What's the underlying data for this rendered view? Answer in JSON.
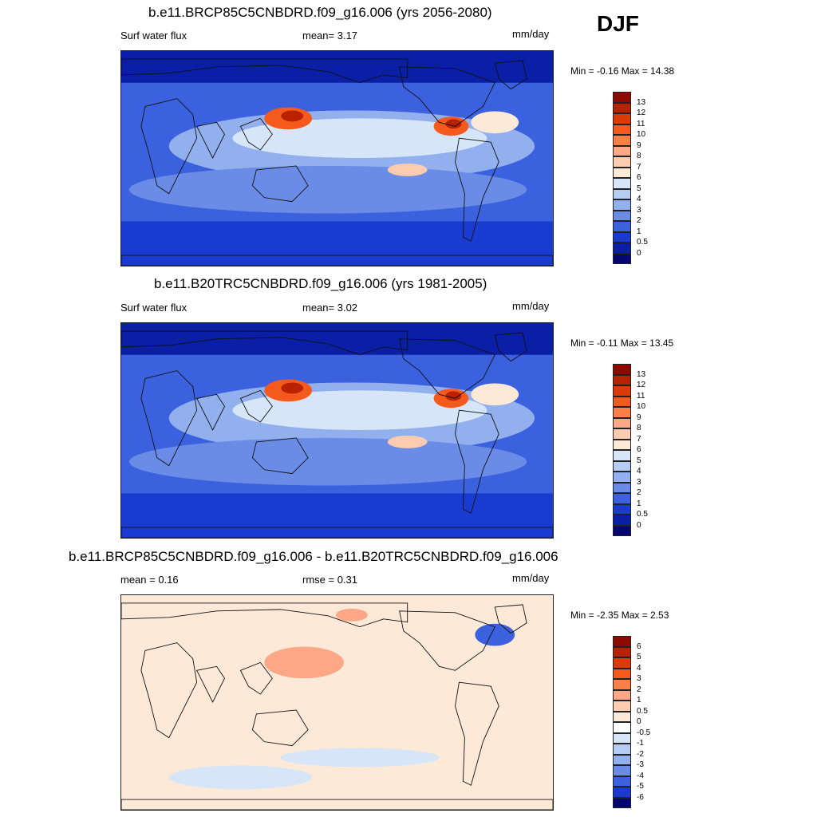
{
  "season": "DJF",
  "panels": [
    {
      "title": "b.e11.BRCP85C5CNBDRD.f09_g16.006 (yrs 2056-2080)",
      "left_label": "Surf water flux",
      "center_label": "mean=   3.17",
      "units": "mm/day",
      "minmax": "Min =  -0.16 Max =  14.38",
      "legend_labels": [
        "13",
        "12",
        "11",
        "10",
        "9",
        "8",
        "7",
        "6",
        "5",
        "4",
        "3",
        "2",
        "1",
        "0.5",
        "0"
      ],
      "legend_colors": [
        "#8c0a00",
        "#b82200",
        "#de3a07",
        "#f55a1c",
        "#fb8048",
        "#fca786",
        "#fdcbb0",
        "#fde9d8",
        "#d6e5f8",
        "#b6cdf3",
        "#92b0ee",
        "#6a8ce6",
        "#3b61de",
        "#1a3bd0",
        "#0a1ea6",
        "#05066e"
      ],
      "map_style": "blue"
    },
    {
      "title": "b.e11.B20TRC5CNBDRD.f09_g16.006 (yrs 1981-2005)",
      "left_label": "Surf water flux",
      "center_label": "mean=   3.02",
      "units": "mm/day",
      "minmax": "Min =  -0.11 Max =  13.45",
      "legend_labels": [
        "13",
        "12",
        "11",
        "10",
        "9",
        "8",
        "7",
        "6",
        "5",
        "4",
        "3",
        "2",
        "1",
        "0.5",
        "0"
      ],
      "legend_colors": [
        "#8c0a00",
        "#b82200",
        "#de3a07",
        "#f55a1c",
        "#fb8048",
        "#fca786",
        "#fdcbb0",
        "#fde9d8",
        "#d6e5f8",
        "#b6cdf3",
        "#92b0ee",
        "#6a8ce6",
        "#3b61de",
        "#1a3bd0",
        "#0a1ea6",
        "#05066e"
      ],
      "map_style": "blue"
    },
    {
      "title": "b.e11.BRCP85C5CNBDRD.f09_g16.006 - b.e11.B20TRC5CNBDRD.f09_g16.006",
      "left_label": "mean =   0.16",
      "center_label": "rmse =   0.31",
      "units": "mm/day",
      "minmax": "Min =  -2.35 Max =   2.53",
      "legend_labels": [
        "6",
        "5",
        "4",
        "3",
        "2",
        "1",
        "0.5",
        "0",
        "-0.5",
        "-1",
        "-2",
        "-3",
        "-4",
        "-5",
        "-6"
      ],
      "legend_colors": [
        "#8c0a00",
        "#b82200",
        "#de3a07",
        "#f55a1c",
        "#fb8048",
        "#fca786",
        "#fdcbb0",
        "#fde9d8",
        "#ffffff",
        "#d6e5f8",
        "#b6cdf3",
        "#92b0ee",
        "#6a8ce6",
        "#3b61de",
        "#1a3bd0",
        "#05066e"
      ],
      "map_style": "diff"
    }
  ]
}
